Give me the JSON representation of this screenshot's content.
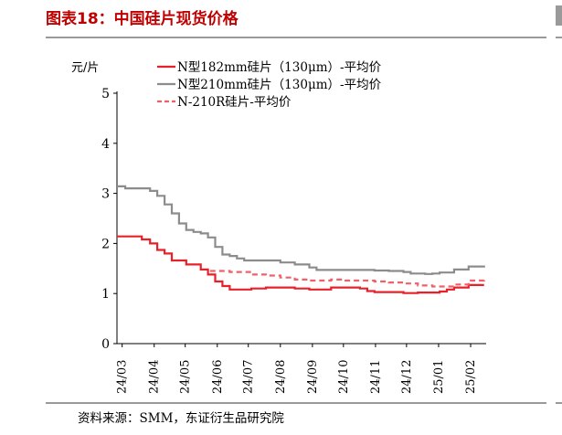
{
  "figure": {
    "title": "图表18：中国硅片现货价格",
    "source": "资料来源：SMM，东证衍生品研究院"
  },
  "chart_data": {
    "type": "line",
    "ylabel": "元/片",
    "ylim": [
      0,
      5
    ],
    "yticks": [
      0,
      1,
      2,
      3,
      4,
      5
    ],
    "xlim": [
      "2024-02-25",
      "2025-02-16"
    ],
    "xticks": [
      "24/03",
      "24/04",
      "24/05",
      "24/06",
      "24/07",
      "24/08",
      "24/09",
      "24/10",
      "24/11",
      "24/12",
      "25/01",
      "25/02"
    ],
    "grid": false,
    "legend_position": "top",
    "series": [
      {
        "name": "N型182mm硅片（130μm）-平均价",
        "color": "#e8202a",
        "dash": false,
        "x": [
          "2024-02-25",
          "2024-03-20",
          "2024-03-28",
          "2024-04-04",
          "2024-04-11",
          "2024-04-18",
          "2024-05-02",
          "2024-05-09",
          "2024-05-16",
          "2024-05-23",
          "2024-05-30",
          "2024-06-06",
          "2024-06-13",
          "2024-06-27",
          "2024-07-04",
          "2024-07-18",
          "2024-08-01",
          "2024-08-15",
          "2024-08-29",
          "2024-09-05",
          "2024-09-19",
          "2024-10-03",
          "2024-10-17",
          "2024-10-24",
          "2024-10-31",
          "2024-11-14",
          "2024-11-28",
          "2024-12-12",
          "2024-12-26",
          "2025-01-02",
          "2025-01-09",
          "2025-01-16",
          "2025-01-23",
          "2025-01-30",
          "2025-02-14"
        ],
        "y": [
          2.14,
          2.08,
          2.0,
          1.87,
          1.8,
          1.66,
          1.58,
          1.58,
          1.48,
          1.38,
          1.24,
          1.15,
          1.08,
          1.08,
          1.1,
          1.12,
          1.12,
          1.1,
          1.08,
          1.08,
          1.12,
          1.12,
          1.1,
          1.05,
          1.03,
          1.03,
          1.01,
          1.02,
          1.02,
          1.04,
          1.08,
          1.12,
          1.12,
          1.17,
          1.17
        ]
      },
      {
        "name": "N型210mm硅片（130μm）-平均价",
        "color": "#8c8c8c",
        "dash": false,
        "x": [
          "2024-02-25",
          "2024-03-04",
          "2024-03-28",
          "2024-04-04",
          "2024-04-11",
          "2024-04-18",
          "2024-04-25",
          "2024-05-02",
          "2024-05-09",
          "2024-05-16",
          "2024-05-23",
          "2024-05-30",
          "2024-06-06",
          "2024-06-13",
          "2024-06-20",
          "2024-06-27",
          "2024-07-04",
          "2024-07-18",
          "2024-08-01",
          "2024-08-15",
          "2024-08-29",
          "2024-09-05",
          "2024-09-19",
          "2024-10-03",
          "2024-10-17",
          "2024-10-31",
          "2024-11-14",
          "2024-11-28",
          "2024-12-05",
          "2024-12-19",
          "2024-12-26",
          "2025-01-02",
          "2025-01-16",
          "2025-01-30",
          "2025-02-14"
        ],
        "y": [
          3.14,
          3.1,
          3.05,
          2.95,
          2.78,
          2.6,
          2.4,
          2.27,
          2.23,
          2.2,
          2.12,
          1.93,
          1.78,
          1.75,
          1.7,
          1.66,
          1.66,
          1.66,
          1.62,
          1.58,
          1.52,
          1.47,
          1.47,
          1.47,
          1.47,
          1.46,
          1.45,
          1.43,
          1.4,
          1.39,
          1.4,
          1.42,
          1.48,
          1.54,
          1.56
        ]
      },
      {
        "name": "N-210R硅片-平均价",
        "color": "#f0606a",
        "dash": true,
        "x": [
          "2024-05-25",
          "2024-06-13",
          "2024-07-04",
          "2024-07-18",
          "2024-08-01",
          "2024-08-15",
          "2024-08-29",
          "2024-09-19",
          "2024-10-03",
          "2024-10-31",
          "2024-11-14",
          "2024-11-28",
          "2024-12-12",
          "2024-12-26",
          "2025-01-02",
          "2025-01-16",
          "2025-01-30",
          "2025-02-14"
        ],
        "y": [
          1.45,
          1.43,
          1.38,
          1.36,
          1.32,
          1.28,
          1.26,
          1.28,
          1.26,
          1.24,
          1.22,
          1.2,
          1.16,
          1.14,
          1.14,
          1.18,
          1.26,
          1.32
        ]
      }
    ]
  }
}
